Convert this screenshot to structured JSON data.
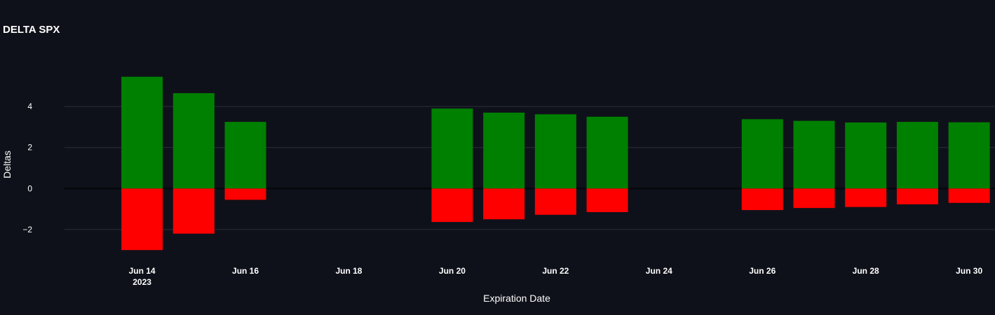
{
  "chart_data": {
    "type": "bar",
    "title": "DELTA SPX",
    "xlabel": "Expiration Date",
    "ylabel": "Deltas",
    "x_ticks": [
      {
        "date": "2023-06-14",
        "label": "Jun 14",
        "sub": "2023"
      },
      {
        "date": "2023-06-16",
        "label": "Jun 16",
        "sub": ""
      },
      {
        "date": "2023-06-18",
        "label": "Jun 18",
        "sub": ""
      },
      {
        "date": "2023-06-20",
        "label": "Jun 20",
        "sub": ""
      },
      {
        "date": "2023-06-22",
        "label": "Jun 22",
        "sub": ""
      },
      {
        "date": "2023-06-24",
        "label": "Jun 24",
        "sub": ""
      },
      {
        "date": "2023-06-26",
        "label": "Jun 26",
        "sub": ""
      },
      {
        "date": "2023-06-28",
        "label": "Jun 28",
        "sub": ""
      },
      {
        "date": "2023-06-30",
        "label": "Jun 30",
        "sub": ""
      }
    ],
    "y_ticks": [
      {
        "value": 4,
        "label": "4"
      },
      {
        "value": 2,
        "label": "2"
      },
      {
        "value": 0,
        "label": "0"
      },
      {
        "value": -2,
        "label": "−2"
      }
    ],
    "ylim": [
      -3.3,
      5.95
    ],
    "xlim": [
      "2023-06-12 12:00",
      "2023-06-30 12:00"
    ],
    "grid": true,
    "series": [
      {
        "color": "#008000",
        "x": [
          "2023-06-14",
          "2023-06-15",
          "2023-06-16",
          "2023-06-20",
          "2023-06-21",
          "2023-06-22",
          "2023-06-23",
          "2023-06-26",
          "2023-06-27",
          "2023-06-28",
          "2023-06-29",
          "2023-06-30"
        ],
        "values": [
          5.45,
          4.65,
          3.25,
          3.9,
          3.7,
          3.62,
          3.5,
          3.38,
          3.3,
          3.22,
          3.25,
          3.23
        ]
      },
      {
        "color": "#ff0000",
        "x": [
          "2023-06-14",
          "2023-06-15",
          "2023-06-16",
          "2023-06-20",
          "2023-06-21",
          "2023-06-22",
          "2023-06-23",
          "2023-06-26",
          "2023-06-27",
          "2023-06-28",
          "2023-06-29",
          "2023-06-30"
        ],
        "values": [
          -3.0,
          -2.2,
          -0.55,
          -1.63,
          -1.5,
          -1.28,
          -1.15,
          -1.05,
          -0.95,
          -0.9,
          -0.77,
          -0.7
        ]
      }
    ],
    "colors": {
      "background": "#0f111a",
      "grid": "#2b2f3a",
      "positive": "#008000",
      "negative": "#ff0000"
    }
  }
}
